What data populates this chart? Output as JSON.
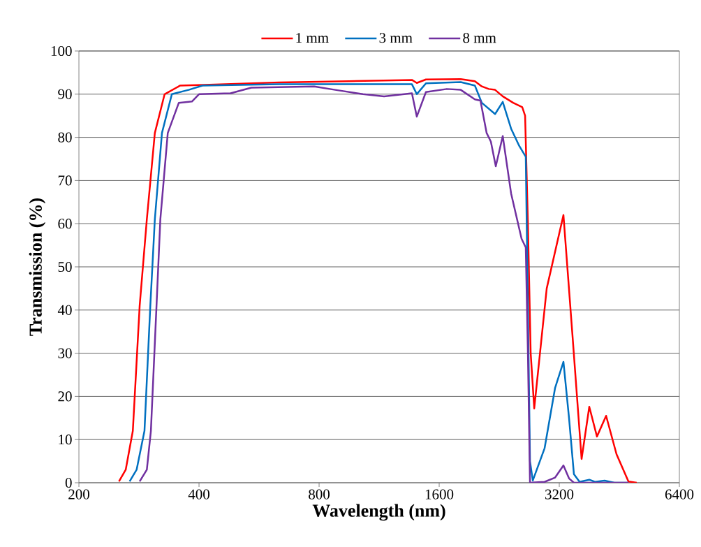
{
  "chart_data": {
    "type": "line",
    "xlabel": "Wavelength (nm)",
    "ylabel": "Transmission (%)",
    "log": "x",
    "xlim": [
      200,
      6400
    ],
    "xticks": [
      200,
      400,
      800,
      1600,
      3200,
      6400
    ],
    "ylim": [
      0,
      100
    ],
    "yticks": [
      0,
      10,
      20,
      30,
      40,
      50,
      60,
      70,
      80,
      90,
      100
    ],
    "grid": "y",
    "legend": "top",
    "marker": "none",
    "line_style": "solid",
    "series": [
      {
        "name": "1 mm",
        "color": "#ff0000",
        "x": [
          252,
          262,
          273,
          284,
          296,
          310,
          328,
          359,
          425,
          636,
          951,
          1367,
          1406,
          1482,
          1812,
          1966,
          2046,
          2130,
          2209,
          2309,
          2452,
          2584,
          2627,
          2670,
          2713,
          2769,
          2976,
          3278,
          3454,
          3640,
          3805,
          3978,
          4193,
          4453,
          4770,
          5003
        ],
        "values": [
          0.3,
          3,
          12,
          41,
          61,
          81,
          90,
          92,
          92.2,
          92.7,
          93,
          93.3,
          92.6,
          93.4,
          93.5,
          93,
          91.8,
          91.2,
          91,
          89.5,
          88,
          87,
          85,
          60,
          30,
          17.2,
          45,
          62,
          34,
          5.5,
          17.6,
          10.7,
          15.5,
          6.6,
          0.3,
          0
        ]
      },
      {
        "name": "3 mm",
        "color": "#0070c0",
        "x": [
          268,
          279,
          292,
          302,
          310,
          323,
          342,
          377,
          408,
          636,
          951,
          1367,
          1406,
          1482,
          1812,
          1966,
          2046,
          2209,
          2309,
          2423,
          2540,
          2637,
          2670,
          2702,
          2746,
          2940,
          3124,
          3278,
          3385,
          3482,
          3598,
          3805,
          3931,
          4158,
          4398,
          4770
        ],
        "values": [
          0.3,
          3,
          12,
          41,
          61,
          81,
          90,
          91,
          92,
          92.3,
          92.3,
          92.3,
          90,
          92.5,
          92.8,
          92,
          88,
          85.4,
          88.2,
          82,
          78,
          75.5,
          40,
          5,
          0.5,
          8,
          22,
          28,
          15,
          2,
          0.2,
          0.7,
          0.2,
          0.5,
          0,
          0
        ]
      },
      {
        "name": "8 mm",
        "color": "#7030a0",
        "x": [
          284,
          296,
          303,
          313,
          320,
          334,
          356,
          384,
          400,
          480,
          541,
          778,
          878,
          1031,
          1164,
          1367,
          1406,
          1482,
          1672,
          1812,
          1966,
          2030,
          2104,
          2156,
          2218,
          2309,
          2423,
          2574,
          2637,
          2670,
          2702,
          2940,
          3124,
          3278,
          3385,
          3482,
          4770
        ],
        "values": [
          0.3,
          3,
          12,
          41,
          61,
          81,
          88,
          88.3,
          90,
          90.2,
          91.5,
          91.8,
          91,
          90,
          89.5,
          90.2,
          84.8,
          90.5,
          91.2,
          91,
          88.8,
          88.5,
          81,
          79,
          73.3,
          80.3,
          67,
          56.5,
          54.5,
          30,
          0,
          0.2,
          1.2,
          4,
          1,
          0,
          0
        ]
      }
    ]
  }
}
